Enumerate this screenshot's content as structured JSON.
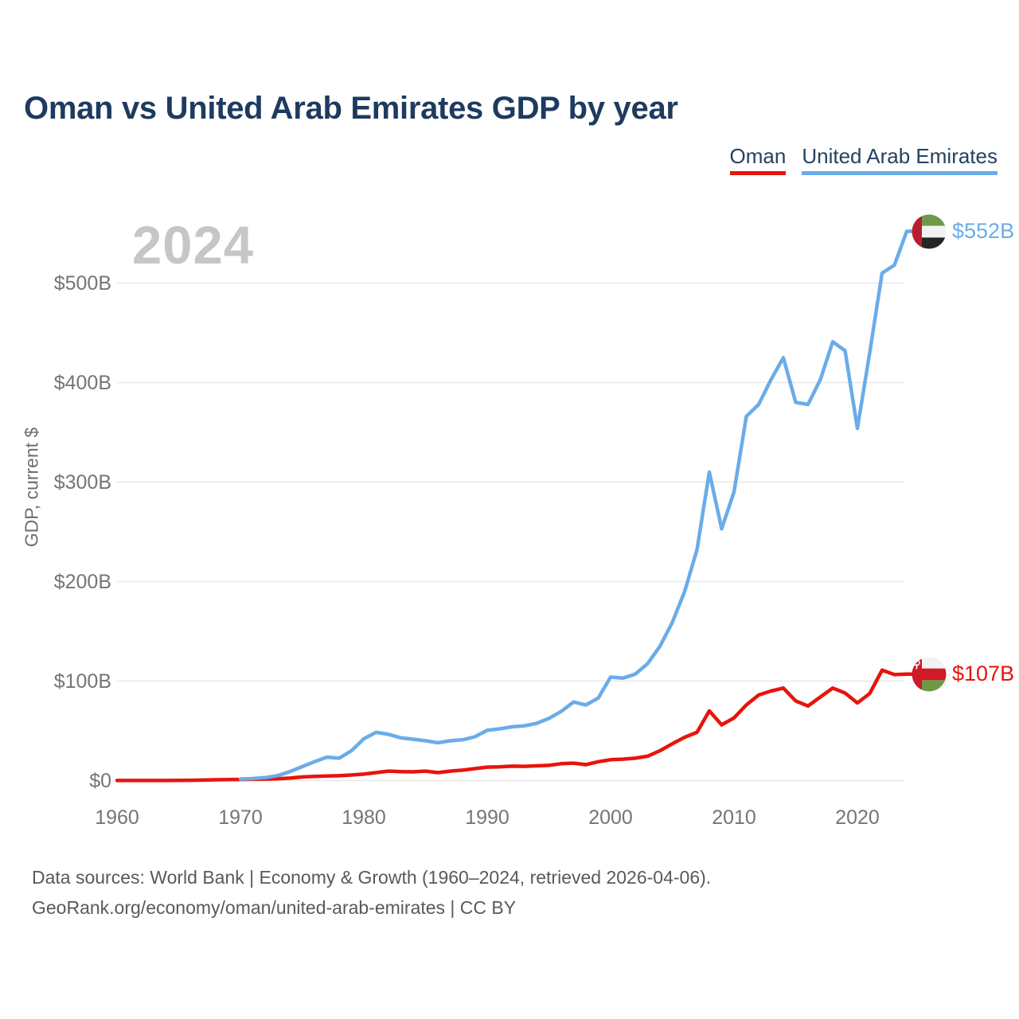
{
  "header": {
    "title": "Oman vs United Arab Emirates GDP by year"
  },
  "watermark": "2024",
  "legend": {
    "items": [
      {
        "label": "Oman",
        "color": "#e8140c"
      },
      {
        "label": "United Arab Emirates",
        "color": "#6aace8"
      }
    ]
  },
  "chart_data": {
    "type": "line",
    "title": "Oman vs United Arab Emirates GDP by year",
    "xlabel": "",
    "ylabel": "GDP, current $",
    "units": "billions of current US$",
    "xlim": [
      1960,
      2024
    ],
    "ylim": [
      0,
      560
    ],
    "grid": true,
    "legend_position": "top-right",
    "x": [
      1960,
      1961,
      1962,
      1963,
      1964,
      1965,
      1966,
      1967,
      1968,
      1969,
      1970,
      1971,
      1972,
      1973,
      1974,
      1975,
      1976,
      1977,
      1978,
      1979,
      1980,
      1981,
      1982,
      1983,
      1984,
      1985,
      1986,
      1987,
      1988,
      1989,
      1990,
      1991,
      1992,
      1993,
      1994,
      1995,
      1996,
      1997,
      1998,
      1999,
      2000,
      2001,
      2002,
      2003,
      2004,
      2005,
      2006,
      2007,
      2008,
      2009,
      2010,
      2011,
      2012,
      2013,
      2014,
      2015,
      2016,
      2017,
      2018,
      2019,
      2020,
      2021,
      2022,
      2023,
      2024
    ],
    "series": [
      {
        "name": "Oman",
        "slug": "oman",
        "color": "#e8140c",
        "end_label": "$107B",
        "end_value_billions": 107,
        "values": [
          0.05,
          0.06,
          0.07,
          0.08,
          0.1,
          0.25,
          0.3,
          0.5,
          0.8,
          1.0,
          1.1,
          1.3,
          1.5,
          1.8,
          2.5,
          3.6,
          4.2,
          4.6,
          4.9,
          5.6,
          6.5,
          8.0,
          9.5,
          9.0,
          8.8,
          9.5,
          8.0,
          9.5,
          10.5,
          12.0,
          13.5,
          13.8,
          14.5,
          14.3,
          14.8,
          15.3,
          17.0,
          17.5,
          16.0,
          19.0,
          21.0,
          21.5,
          22.5,
          24.5,
          30.0,
          37.0,
          43.5,
          48.5,
          70.0,
          56.0,
          63.0,
          76.0,
          86.0,
          90.0,
          93.0,
          80.0,
          75.0,
          84.0,
          93.0,
          88.0,
          78.0,
          87.5,
          111.0,
          106.5,
          107.0
        ]
      },
      {
        "name": "United Arab Emirates",
        "slug": "uae",
        "color": "#6aace8",
        "end_label": "$552B",
        "end_value_billions": 552,
        "values": [
          null,
          null,
          null,
          null,
          null,
          null,
          null,
          null,
          null,
          null,
          1.5,
          2.0,
          3.0,
          5.0,
          9.0,
          14.0,
          19.0,
          23.5,
          22.5,
          30.0,
          42.0,
          48.5,
          46.5,
          43.0,
          41.5,
          40.0,
          38.0,
          40.0,
          41.0,
          44.0,
          50.5,
          52.0,
          54.0,
          55.0,
          57.5,
          62.5,
          69.5,
          79.0,
          76.0,
          83.0,
          104.0,
          103.0,
          107.0,
          117.5,
          135.0,
          159.0,
          190.0,
          232.0,
          310.0,
          253.0,
          290.0,
          366.0,
          378.0,
          403.0,
          425.0,
          380.0,
          378.0,
          403.0,
          441.0,
          432.0,
          354.0,
          430.0,
          510.0,
          518.0,
          552.0
        ]
      }
    ],
    "y_ticks": [
      {
        "value": 0,
        "label": "$0"
      },
      {
        "value": 100,
        "label": "$100B"
      },
      {
        "value": 200,
        "label": "$200B"
      },
      {
        "value": 300,
        "label": "$300B"
      },
      {
        "value": 400,
        "label": "$400B"
      },
      {
        "value": 500,
        "label": "$500B"
      }
    ],
    "x_ticks": [
      {
        "value": 1960,
        "label": "1960"
      },
      {
        "value": 1970,
        "label": "1970"
      },
      {
        "value": 1980,
        "label": "1980"
      },
      {
        "value": 1990,
        "label": "1990"
      },
      {
        "value": 2000,
        "label": "2000"
      },
      {
        "value": 2010,
        "label": "2010"
      },
      {
        "value": 2020,
        "label": "2020"
      }
    ]
  },
  "footer": {
    "line1": "Data sources: World Bank | Economy & Growth (1960–2024, retrieved 2026-04-06).",
    "line2": "GeoRank.org/economy/oman/united-arab-emirates | CC BY"
  },
  "colors": {
    "title": "#1e3a5f",
    "axis_text": "#757575",
    "gridline": "#e8e8e8",
    "watermark": "#c6c6c6",
    "footer_text": "#595959",
    "oman_line": "#e8140c",
    "uae_line": "#6aace8"
  }
}
